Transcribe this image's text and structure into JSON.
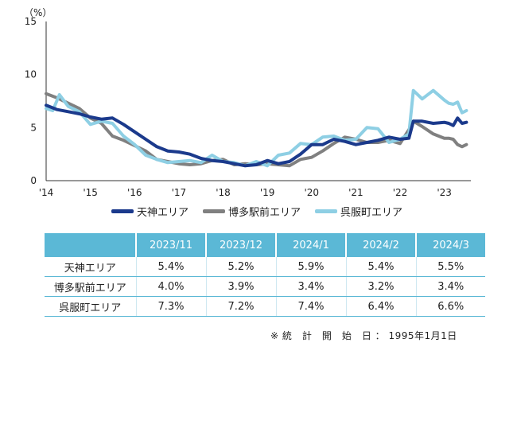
{
  "chart_data": {
    "type": "line",
    "y_unit_label": "（%）",
    "ylim": [
      0,
      15
    ],
    "y_ticks": [
      0,
      5,
      10,
      15
    ],
    "xlim": [
      2014.0,
      2023.6
    ],
    "x_ticks": [
      {
        "value": 2014,
        "label": "'14"
      },
      {
        "value": 2015,
        "label": "'15"
      },
      {
        "value": 2016,
        "label": "'16"
      },
      {
        "value": 2017,
        "label": "'17"
      },
      {
        "value": 2018,
        "label": "'18"
      },
      {
        "value": 2019,
        "label": "'19"
      },
      {
        "value": 2020,
        "label": "'20"
      },
      {
        "value": 2021,
        "label": "'21"
      },
      {
        "value": 2022,
        "label": "'22"
      },
      {
        "value": 2023,
        "label": "'23"
      }
    ],
    "grid": false,
    "legend_position": "bottom",
    "series": [
      {
        "name": "天神エリア",
        "color": "#1b3a8c",
        "points": [
          [
            2014.0,
            7.1
          ],
          [
            2014.25,
            6.7
          ],
          [
            2014.5,
            6.5
          ],
          [
            2014.75,
            6.3
          ],
          [
            2015.0,
            6.0
          ],
          [
            2015.25,
            5.8
          ],
          [
            2015.5,
            5.9
          ],
          [
            2015.75,
            5.3
          ],
          [
            2016.0,
            4.6
          ],
          [
            2016.25,
            3.9
          ],
          [
            2016.5,
            3.2
          ],
          [
            2016.75,
            2.8
          ],
          [
            2017.0,
            2.7
          ],
          [
            2017.25,
            2.5
          ],
          [
            2017.5,
            2.1
          ],
          [
            2017.75,
            1.9
          ],
          [
            2018.0,
            1.8
          ],
          [
            2018.25,
            1.6
          ],
          [
            2018.5,
            1.4
          ],
          [
            2018.75,
            1.5
          ],
          [
            2019.0,
            1.9
          ],
          [
            2019.25,
            1.6
          ],
          [
            2019.5,
            1.8
          ],
          [
            2019.75,
            2.5
          ],
          [
            2020.0,
            3.4
          ],
          [
            2020.25,
            3.4
          ],
          [
            2020.5,
            3.9
          ],
          [
            2020.75,
            3.7
          ],
          [
            2021.0,
            3.4
          ],
          [
            2021.25,
            3.6
          ],
          [
            2021.5,
            3.8
          ],
          [
            2021.75,
            4.1
          ],
          [
            2022.0,
            3.9
          ],
          [
            2022.2,
            4.0
          ],
          [
            2022.3,
            5.6
          ],
          [
            2022.5,
            5.6
          ],
          [
            2022.75,
            5.4
          ],
          [
            2023.0,
            5.5
          ],
          [
            2023.1,
            5.4
          ],
          [
            2023.2,
            5.2
          ],
          [
            2023.3,
            5.9
          ],
          [
            2023.4,
            5.4
          ],
          [
            2023.5,
            5.5
          ]
        ]
      },
      {
        "name": "博多駅前エリア",
        "color": "#808080",
        "points": [
          [
            2014.0,
            8.2
          ],
          [
            2014.25,
            7.8
          ],
          [
            2014.5,
            7.3
          ],
          [
            2014.75,
            6.8
          ],
          [
            2015.0,
            5.9
          ],
          [
            2015.25,
            5.4
          ],
          [
            2015.5,
            4.2
          ],
          [
            2015.75,
            3.8
          ],
          [
            2016.0,
            3.3
          ],
          [
            2016.25,
            2.8
          ],
          [
            2016.5,
            2.0
          ],
          [
            2016.75,
            1.8
          ],
          [
            2017.0,
            1.6
          ],
          [
            2017.25,
            1.5
          ],
          [
            2017.5,
            1.6
          ],
          [
            2017.75,
            1.9
          ],
          [
            2018.0,
            2.0
          ],
          [
            2018.25,
            1.5
          ],
          [
            2018.5,
            1.6
          ],
          [
            2018.75,
            1.5
          ],
          [
            2019.0,
            1.6
          ],
          [
            2019.25,
            1.5
          ],
          [
            2019.5,
            1.4
          ],
          [
            2019.75,
            2.0
          ],
          [
            2020.0,
            2.2
          ],
          [
            2020.25,
            2.8
          ],
          [
            2020.5,
            3.5
          ],
          [
            2020.75,
            4.1
          ],
          [
            2021.0,
            3.9
          ],
          [
            2021.25,
            3.6
          ],
          [
            2021.5,
            3.6
          ],
          [
            2021.75,
            3.8
          ],
          [
            2022.0,
            3.5
          ],
          [
            2022.2,
            4.8
          ],
          [
            2022.3,
            5.6
          ],
          [
            2022.5,
            5.1
          ],
          [
            2022.75,
            4.4
          ],
          [
            2023.0,
            4.0
          ],
          [
            2023.1,
            4.0
          ],
          [
            2023.2,
            3.9
          ],
          [
            2023.3,
            3.4
          ],
          [
            2023.4,
            3.2
          ],
          [
            2023.5,
            3.4
          ]
        ]
      },
      {
        "name": "呉服町エリア",
        "color": "#8ecfe4",
        "points": [
          [
            2014.0,
            6.8
          ],
          [
            2014.15,
            6.6
          ],
          [
            2014.3,
            8.1
          ],
          [
            2014.5,
            7.0
          ],
          [
            2014.75,
            6.5
          ],
          [
            2015.0,
            5.3
          ],
          [
            2015.25,
            5.6
          ],
          [
            2015.5,
            5.4
          ],
          [
            2015.75,
            4.2
          ],
          [
            2016.0,
            3.4
          ],
          [
            2016.25,
            2.4
          ],
          [
            2016.5,
            2.0
          ],
          [
            2016.75,
            1.7
          ],
          [
            2017.0,
            1.8
          ],
          [
            2017.25,
            1.9
          ],
          [
            2017.5,
            1.7
          ],
          [
            2017.75,
            2.4
          ],
          [
            2018.0,
            1.8
          ],
          [
            2018.25,
            1.7
          ],
          [
            2018.5,
            1.4
          ],
          [
            2018.75,
            1.8
          ],
          [
            2019.0,
            1.4
          ],
          [
            2019.25,
            2.4
          ],
          [
            2019.5,
            2.6
          ],
          [
            2019.75,
            3.5
          ],
          [
            2020.0,
            3.4
          ],
          [
            2020.25,
            4.1
          ],
          [
            2020.5,
            4.2
          ],
          [
            2020.75,
            3.8
          ],
          [
            2021.0,
            3.9
          ],
          [
            2021.25,
            5.0
          ],
          [
            2021.5,
            4.9
          ],
          [
            2021.75,
            3.6
          ],
          [
            2022.0,
            3.9
          ],
          [
            2022.2,
            4.4
          ],
          [
            2022.3,
            8.5
          ],
          [
            2022.5,
            7.7
          ],
          [
            2022.75,
            8.5
          ],
          [
            2023.0,
            7.6
          ],
          [
            2023.1,
            7.3
          ],
          [
            2023.2,
            7.2
          ],
          [
            2023.3,
            7.4
          ],
          [
            2023.4,
            6.4
          ],
          [
            2023.5,
            6.6
          ]
        ]
      }
    ]
  },
  "legend": [
    {
      "label": "天神エリア",
      "color": "#1b3a8c"
    },
    {
      "label": "博多駅前エリア",
      "color": "#808080"
    },
    {
      "label": "呉服町エリア",
      "color": "#8ecfe4"
    }
  ],
  "table": {
    "columns": [
      "2023/11",
      "2023/12",
      "2024/1",
      "2024/2",
      "2024/3"
    ],
    "rows": [
      {
        "label": "天神エリア",
        "values": [
          "5.4%",
          "5.2%",
          "5.9%",
          "5.4%",
          "5.5%"
        ]
      },
      {
        "label": "博多駅前エリア",
        "values": [
          "4.0%",
          "3.9%",
          "3.4%",
          "3.2%",
          "3.4%"
        ]
      },
      {
        "label": "呉服町エリア",
        "values": [
          "7.3%",
          "7.2%",
          "7.4%",
          "6.4%",
          "6.6%"
        ]
      }
    ]
  },
  "note": "※ 統　計　開　始　日 ： 1995年1月1日"
}
